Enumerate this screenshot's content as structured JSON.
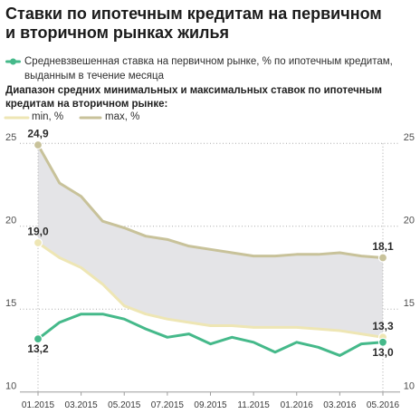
{
  "chart_data": {
    "type": "line",
    "title": "Ставки по ипотечным кредитам на первичном\nи вторичном рынках жилья",
    "subtitle": "Диапазон средних минимальных и максимальных ставок по ипотечным\nкредитам на вторичном рынке:",
    "x": [
      "01.2015",
      "02.2015",
      "03.2015",
      "04.2015",
      "05.2015",
      "06.2015",
      "07.2015",
      "08.2015",
      "09.2015",
      "10.2015",
      "11.2015",
      "12.2015",
      "01.2016",
      "02.2016",
      "03.2016",
      "04.2016",
      "05.2016"
    ],
    "x_tick_labels": [
      "01.2015",
      "03.2015",
      "05.2015",
      "07.2015",
      "09.2015",
      "11.2015",
      "01.2016",
      "03.2016",
      "05.2016"
    ],
    "y_ticks": [
      25,
      20,
      15,
      10
    ],
    "ylim": [
      10,
      25
    ],
    "y_ticks_both_sides": true,
    "grid": true,
    "legend_position": "top-left",
    "band": {
      "lower_series": 1,
      "upper_series": 2,
      "color": "#e4e4e7"
    },
    "series": [
      {
        "name": "Средневзвешенная ставка на первичном рынке, % по ипотечным кредитам,\nвыданным в течение месяца",
        "color": "#45b98a",
        "values": [
          13.2,
          14.2,
          14.7,
          14.7,
          14.4,
          13.8,
          13.3,
          13.5,
          12.9,
          13.3,
          13.0,
          12.4,
          13.0,
          12.7,
          12.2,
          12.9,
          13.0
        ],
        "data_labels": [
          {
            "index": 0,
            "text": "13,2"
          },
          {
            "index": 16,
            "text": "13,0"
          }
        ]
      },
      {
        "name": "min, %",
        "color": "#eee6b4",
        "values": [
          19.0,
          18.1,
          17.5,
          16.5,
          15.2,
          14.7,
          14.4,
          14.2,
          14.0,
          14.0,
          13.9,
          13.9,
          13.9,
          13.8,
          13.7,
          13.5,
          13.3
        ],
        "data_labels": [
          {
            "index": 0,
            "text": "19,0"
          },
          {
            "index": 16,
            "text": "13,3"
          }
        ]
      },
      {
        "name": "max, %",
        "color": "#c8c29a",
        "values": [
          24.9,
          22.6,
          21.8,
          20.3,
          19.9,
          19.4,
          19.2,
          18.8,
          18.6,
          18.4,
          18.2,
          18.2,
          18.3,
          18.3,
          18.4,
          18.2,
          18.1
        ],
        "data_labels": [
          {
            "index": 0,
            "text": "24,9"
          },
          {
            "index": 16,
            "text": "18,1"
          }
        ]
      }
    ]
  }
}
